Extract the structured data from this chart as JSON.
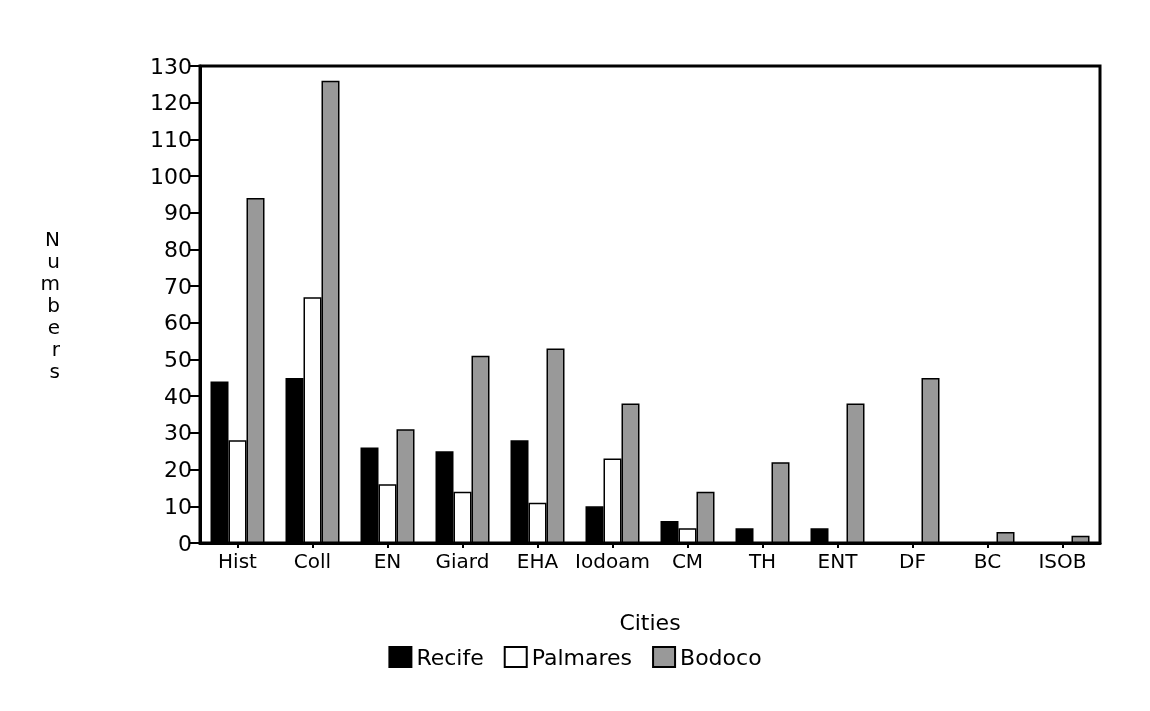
{
  "chart_data": {
    "type": "bar",
    "xlabel": "Cities",
    "ylabel": "Numbers",
    "categories": [
      "Hist",
      "Coll",
      "EN",
      "Giard",
      "EHA",
      "Iodoam",
      "CM",
      "TH",
      "ENT",
      "DF",
      "BC",
      "ISOB"
    ],
    "series": [
      {
        "name": "Recife",
        "color": "#000000",
        "values": [
          44,
          45,
          26,
          25,
          28,
          10,
          6,
          4,
          4,
          0,
          0,
          0
        ]
      },
      {
        "name": "Palmares",
        "color": "#ffffff",
        "values": [
          28,
          67,
          16,
          14,
          11,
          23,
          4,
          0,
          0,
          0,
          0,
          0
        ]
      },
      {
        "name": "Bodoco",
        "color": "#999999",
        "values": [
          94,
          126,
          31,
          51,
          53,
          38,
          14,
          22,
          38,
          45,
          3,
          2
        ]
      }
    ],
    "ylim": [
      0,
      130
    ],
    "yticks": [
      0,
      10,
      20,
      30,
      40,
      50,
      60,
      70,
      80,
      90,
      100,
      110,
      120,
      130
    ],
    "grid": false,
    "legend": "bottom"
  }
}
